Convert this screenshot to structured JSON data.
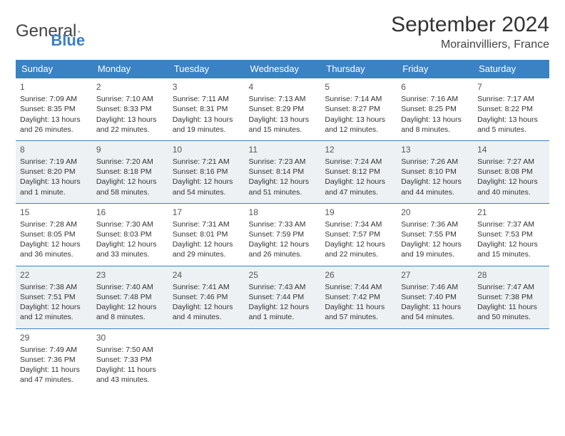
{
  "logo": {
    "text1": "General",
    "text2": "Blue"
  },
  "title": "September 2024",
  "location": "Morainvilliers, France",
  "colors": {
    "header_bg": "#3b82c4",
    "header_text": "#ffffff",
    "shaded_row": "#eef1f3",
    "border": "#3b82c4",
    "body_bg": "#ffffff",
    "text": "#333333"
  },
  "day_headers": [
    "Sunday",
    "Monday",
    "Tuesday",
    "Wednesday",
    "Thursday",
    "Friday",
    "Saturday"
  ],
  "weeks": [
    {
      "shaded": false,
      "days": [
        {
          "n": "1",
          "sunrise": "Sunrise: 7:09 AM",
          "sunset": "Sunset: 8:35 PM",
          "daylight": "Daylight: 13 hours and 26 minutes."
        },
        {
          "n": "2",
          "sunrise": "Sunrise: 7:10 AM",
          "sunset": "Sunset: 8:33 PM",
          "daylight": "Daylight: 13 hours and 22 minutes."
        },
        {
          "n": "3",
          "sunrise": "Sunrise: 7:11 AM",
          "sunset": "Sunset: 8:31 PM",
          "daylight": "Daylight: 13 hours and 19 minutes."
        },
        {
          "n": "4",
          "sunrise": "Sunrise: 7:13 AM",
          "sunset": "Sunset: 8:29 PM",
          "daylight": "Daylight: 13 hours and 15 minutes."
        },
        {
          "n": "5",
          "sunrise": "Sunrise: 7:14 AM",
          "sunset": "Sunset: 8:27 PM",
          "daylight": "Daylight: 13 hours and 12 minutes."
        },
        {
          "n": "6",
          "sunrise": "Sunrise: 7:16 AM",
          "sunset": "Sunset: 8:25 PM",
          "daylight": "Daylight: 13 hours and 8 minutes."
        },
        {
          "n": "7",
          "sunrise": "Sunrise: 7:17 AM",
          "sunset": "Sunset: 8:22 PM",
          "daylight": "Daylight: 13 hours and 5 minutes."
        }
      ]
    },
    {
      "shaded": true,
      "days": [
        {
          "n": "8",
          "sunrise": "Sunrise: 7:19 AM",
          "sunset": "Sunset: 8:20 PM",
          "daylight": "Daylight: 13 hours and 1 minute."
        },
        {
          "n": "9",
          "sunrise": "Sunrise: 7:20 AM",
          "sunset": "Sunset: 8:18 PM",
          "daylight": "Daylight: 12 hours and 58 minutes."
        },
        {
          "n": "10",
          "sunrise": "Sunrise: 7:21 AM",
          "sunset": "Sunset: 8:16 PM",
          "daylight": "Daylight: 12 hours and 54 minutes."
        },
        {
          "n": "11",
          "sunrise": "Sunrise: 7:23 AM",
          "sunset": "Sunset: 8:14 PM",
          "daylight": "Daylight: 12 hours and 51 minutes."
        },
        {
          "n": "12",
          "sunrise": "Sunrise: 7:24 AM",
          "sunset": "Sunset: 8:12 PM",
          "daylight": "Daylight: 12 hours and 47 minutes."
        },
        {
          "n": "13",
          "sunrise": "Sunrise: 7:26 AM",
          "sunset": "Sunset: 8:10 PM",
          "daylight": "Daylight: 12 hours and 44 minutes."
        },
        {
          "n": "14",
          "sunrise": "Sunrise: 7:27 AM",
          "sunset": "Sunset: 8:08 PM",
          "daylight": "Daylight: 12 hours and 40 minutes."
        }
      ]
    },
    {
      "shaded": false,
      "days": [
        {
          "n": "15",
          "sunrise": "Sunrise: 7:28 AM",
          "sunset": "Sunset: 8:05 PM",
          "daylight": "Daylight: 12 hours and 36 minutes."
        },
        {
          "n": "16",
          "sunrise": "Sunrise: 7:30 AM",
          "sunset": "Sunset: 8:03 PM",
          "daylight": "Daylight: 12 hours and 33 minutes."
        },
        {
          "n": "17",
          "sunrise": "Sunrise: 7:31 AM",
          "sunset": "Sunset: 8:01 PM",
          "daylight": "Daylight: 12 hours and 29 minutes."
        },
        {
          "n": "18",
          "sunrise": "Sunrise: 7:33 AM",
          "sunset": "Sunset: 7:59 PM",
          "daylight": "Daylight: 12 hours and 26 minutes."
        },
        {
          "n": "19",
          "sunrise": "Sunrise: 7:34 AM",
          "sunset": "Sunset: 7:57 PM",
          "daylight": "Daylight: 12 hours and 22 minutes."
        },
        {
          "n": "20",
          "sunrise": "Sunrise: 7:36 AM",
          "sunset": "Sunset: 7:55 PM",
          "daylight": "Daylight: 12 hours and 19 minutes."
        },
        {
          "n": "21",
          "sunrise": "Sunrise: 7:37 AM",
          "sunset": "Sunset: 7:53 PM",
          "daylight": "Daylight: 12 hours and 15 minutes."
        }
      ]
    },
    {
      "shaded": true,
      "days": [
        {
          "n": "22",
          "sunrise": "Sunrise: 7:38 AM",
          "sunset": "Sunset: 7:51 PM",
          "daylight": "Daylight: 12 hours and 12 minutes."
        },
        {
          "n": "23",
          "sunrise": "Sunrise: 7:40 AM",
          "sunset": "Sunset: 7:48 PM",
          "daylight": "Daylight: 12 hours and 8 minutes."
        },
        {
          "n": "24",
          "sunrise": "Sunrise: 7:41 AM",
          "sunset": "Sunset: 7:46 PM",
          "daylight": "Daylight: 12 hours and 4 minutes."
        },
        {
          "n": "25",
          "sunrise": "Sunrise: 7:43 AM",
          "sunset": "Sunset: 7:44 PM",
          "daylight": "Daylight: 12 hours and 1 minute."
        },
        {
          "n": "26",
          "sunrise": "Sunrise: 7:44 AM",
          "sunset": "Sunset: 7:42 PM",
          "daylight": "Daylight: 11 hours and 57 minutes."
        },
        {
          "n": "27",
          "sunrise": "Sunrise: 7:46 AM",
          "sunset": "Sunset: 7:40 PM",
          "daylight": "Daylight: 11 hours and 54 minutes."
        },
        {
          "n": "28",
          "sunrise": "Sunrise: 7:47 AM",
          "sunset": "Sunset: 7:38 PM",
          "daylight": "Daylight: 11 hours and 50 minutes."
        }
      ]
    },
    {
      "shaded": false,
      "days": [
        {
          "n": "29",
          "sunrise": "Sunrise: 7:49 AM",
          "sunset": "Sunset: 7:36 PM",
          "daylight": "Daylight: 11 hours and 47 minutes."
        },
        {
          "n": "30",
          "sunrise": "Sunrise: 7:50 AM",
          "sunset": "Sunset: 7:33 PM",
          "daylight": "Daylight: 11 hours and 43 minutes."
        },
        {
          "empty": true
        },
        {
          "empty": true
        },
        {
          "empty": true
        },
        {
          "empty": true
        },
        {
          "empty": true
        }
      ]
    }
  ]
}
